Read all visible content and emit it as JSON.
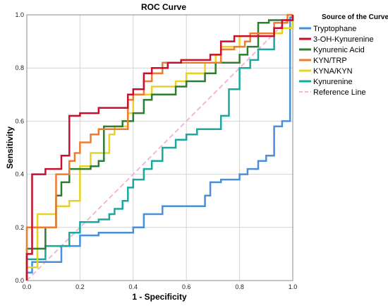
{
  "chart_data": {
    "type": "line",
    "title": "ROC Curve",
    "xlabel": "1 - Specificity",
    "ylabel": "Sensitivity",
    "xlim": [
      0,
      1
    ],
    "ylim": [
      0,
      1
    ],
    "xticks": [
      "0.0",
      "0.2",
      "0.4",
      "0.6",
      "0.8",
      "1.0"
    ],
    "yticks": [
      "0.0",
      "0.2",
      "0.4",
      "0.6",
      "0.8",
      "1.0"
    ],
    "grid": true,
    "legend": {
      "title": "Source of the Curve",
      "position": "right"
    },
    "series": [
      {
        "name": "Tryptophane",
        "color": "#4a90d9",
        "points": [
          [
            0,
            0
          ],
          [
            0,
            0.03
          ],
          [
            0.02,
            0.03
          ],
          [
            0.02,
            0.07
          ],
          [
            0.13,
            0.07
          ],
          [
            0.13,
            0.13
          ],
          [
            0.2,
            0.13
          ],
          [
            0.2,
            0.17
          ],
          [
            0.27,
            0.17
          ],
          [
            0.27,
            0.18
          ],
          [
            0.4,
            0.18
          ],
          [
            0.4,
            0.2
          ],
          [
            0.44,
            0.2
          ],
          [
            0.44,
            0.25
          ],
          [
            0.51,
            0.25
          ],
          [
            0.51,
            0.28
          ],
          [
            0.67,
            0.28
          ],
          [
            0.67,
            0.32
          ],
          [
            0.69,
            0.32
          ],
          [
            0.69,
            0.37
          ],
          [
            0.73,
            0.37
          ],
          [
            0.73,
            0.38
          ],
          [
            0.8,
            0.38
          ],
          [
            0.8,
            0.4
          ],
          [
            0.83,
            0.4
          ],
          [
            0.83,
            0.42
          ],
          [
            0.87,
            0.42
          ],
          [
            0.87,
            0.45
          ],
          [
            0.9,
            0.45
          ],
          [
            0.9,
            0.47
          ],
          [
            0.93,
            0.47
          ],
          [
            0.93,
            0.58
          ],
          [
            0.96,
            0.58
          ],
          [
            0.96,
            0.6
          ],
          [
            0.99,
            0.6
          ],
          [
            0.99,
            0.99
          ],
          [
            1,
            0.99
          ],
          [
            1,
            1
          ]
        ]
      },
      {
        "name": "3-OH-Kynurenine",
        "color": "#c8102e",
        "points": [
          [
            0,
            0
          ],
          [
            0,
            0.1
          ],
          [
            0.02,
            0.1
          ],
          [
            0.02,
            0.4
          ],
          [
            0.07,
            0.4
          ],
          [
            0.07,
            0.42
          ],
          [
            0.13,
            0.42
          ],
          [
            0.13,
            0.47
          ],
          [
            0.16,
            0.47
          ],
          [
            0.16,
            0.62
          ],
          [
            0.2,
            0.62
          ],
          [
            0.2,
            0.63
          ],
          [
            0.27,
            0.63
          ],
          [
            0.27,
            0.65
          ],
          [
            0.38,
            0.65
          ],
          [
            0.38,
            0.7
          ],
          [
            0.4,
            0.7
          ],
          [
            0.4,
            0.72
          ],
          [
            0.44,
            0.72
          ],
          [
            0.44,
            0.78
          ],
          [
            0.47,
            0.78
          ],
          [
            0.47,
            0.8
          ],
          [
            0.53,
            0.8
          ],
          [
            0.53,
            0.82
          ],
          [
            0.58,
            0.82
          ],
          [
            0.58,
            0.83
          ],
          [
            0.69,
            0.83
          ],
          [
            0.69,
            0.85
          ],
          [
            0.73,
            0.85
          ],
          [
            0.73,
            0.9
          ],
          [
            0.78,
            0.9
          ],
          [
            0.78,
            0.92
          ],
          [
            0.93,
            0.92
          ],
          [
            0.93,
            0.95
          ],
          [
            0.96,
            0.95
          ],
          [
            0.96,
            0.98
          ],
          [
            1,
            0.98
          ],
          [
            1,
            1
          ]
        ]
      },
      {
        "name": "Kynurenic Acid",
        "color": "#2e7d32",
        "points": [
          [
            0,
            0
          ],
          [
            0,
            0.12
          ],
          [
            0.07,
            0.12
          ],
          [
            0.07,
            0.2
          ],
          [
            0.11,
            0.2
          ],
          [
            0.11,
            0.32
          ],
          [
            0.13,
            0.32
          ],
          [
            0.13,
            0.37
          ],
          [
            0.16,
            0.37
          ],
          [
            0.16,
            0.42
          ],
          [
            0.24,
            0.42
          ],
          [
            0.24,
            0.43
          ],
          [
            0.27,
            0.43
          ],
          [
            0.27,
            0.45
          ],
          [
            0.29,
            0.45
          ],
          [
            0.29,
            0.58
          ],
          [
            0.36,
            0.58
          ],
          [
            0.36,
            0.6
          ],
          [
            0.4,
            0.6
          ],
          [
            0.4,
            0.63
          ],
          [
            0.44,
            0.63
          ],
          [
            0.44,
            0.68
          ],
          [
            0.47,
            0.68
          ],
          [
            0.47,
            0.7
          ],
          [
            0.56,
            0.7
          ],
          [
            0.56,
            0.73
          ],
          [
            0.6,
            0.73
          ],
          [
            0.6,
            0.75
          ],
          [
            0.67,
            0.75
          ],
          [
            0.67,
            0.78
          ],
          [
            0.71,
            0.78
          ],
          [
            0.71,
            0.82
          ],
          [
            0.8,
            0.82
          ],
          [
            0.8,
            0.85
          ],
          [
            0.83,
            0.85
          ],
          [
            0.83,
            0.88
          ],
          [
            0.87,
            0.88
          ],
          [
            0.87,
            0.97
          ],
          [
            0.91,
            0.97
          ],
          [
            0.91,
            0.98
          ],
          [
            1,
            0.98
          ],
          [
            1,
            1
          ]
        ]
      },
      {
        "name": "KYN/TRP",
        "color": "#f07b2e",
        "points": [
          [
            0,
            0
          ],
          [
            0,
            0.2
          ],
          [
            0.11,
            0.2
          ],
          [
            0.11,
            0.4
          ],
          [
            0.16,
            0.4
          ],
          [
            0.16,
            0.45
          ],
          [
            0.18,
            0.45
          ],
          [
            0.18,
            0.48
          ],
          [
            0.2,
            0.48
          ],
          [
            0.2,
            0.52
          ],
          [
            0.24,
            0.52
          ],
          [
            0.24,
            0.55
          ],
          [
            0.27,
            0.55
          ],
          [
            0.27,
            0.57
          ],
          [
            0.38,
            0.57
          ],
          [
            0.38,
            0.68
          ],
          [
            0.4,
            0.68
          ],
          [
            0.4,
            0.7
          ],
          [
            0.44,
            0.7
          ],
          [
            0.44,
            0.75
          ],
          [
            0.47,
            0.75
          ],
          [
            0.47,
            0.78
          ],
          [
            0.51,
            0.78
          ],
          [
            0.51,
            0.82
          ],
          [
            0.73,
            0.82
          ],
          [
            0.73,
            0.87
          ],
          [
            0.78,
            0.87
          ],
          [
            0.78,
            0.88
          ],
          [
            0.82,
            0.88
          ],
          [
            0.82,
            0.9
          ],
          [
            0.84,
            0.9
          ],
          [
            0.84,
            0.93
          ],
          [
            0.93,
            0.93
          ],
          [
            0.93,
            0.97
          ],
          [
            0.98,
            0.97
          ],
          [
            0.98,
            1
          ],
          [
            1,
            1
          ]
        ]
      },
      {
        "name": "KYNA/KYN",
        "color": "#e6d322",
        "points": [
          [
            0,
            0
          ],
          [
            0,
            0.05
          ],
          [
            0.04,
            0.05
          ],
          [
            0.04,
            0.25
          ],
          [
            0.11,
            0.25
          ],
          [
            0.11,
            0.28
          ],
          [
            0.16,
            0.28
          ],
          [
            0.16,
            0.3
          ],
          [
            0.2,
            0.3
          ],
          [
            0.2,
            0.43
          ],
          [
            0.24,
            0.43
          ],
          [
            0.24,
            0.48
          ],
          [
            0.31,
            0.48
          ],
          [
            0.31,
            0.55
          ],
          [
            0.33,
            0.55
          ],
          [
            0.33,
            0.58
          ],
          [
            0.38,
            0.58
          ],
          [
            0.38,
            0.63
          ],
          [
            0.4,
            0.63
          ],
          [
            0.4,
            0.7
          ],
          [
            0.47,
            0.7
          ],
          [
            0.47,
            0.73
          ],
          [
            0.56,
            0.73
          ],
          [
            0.56,
            0.75
          ],
          [
            0.6,
            0.75
          ],
          [
            0.6,
            0.78
          ],
          [
            0.67,
            0.78
          ],
          [
            0.67,
            0.82
          ],
          [
            0.71,
            0.82
          ],
          [
            0.71,
            0.85
          ],
          [
            0.73,
            0.85
          ],
          [
            0.73,
            0.88
          ],
          [
            0.8,
            0.88
          ],
          [
            0.8,
            0.92
          ],
          [
            0.87,
            0.92
          ],
          [
            0.87,
            0.93
          ],
          [
            0.96,
            0.93
          ],
          [
            0.96,
            0.95
          ],
          [
            1,
            0.95
          ],
          [
            1,
            1
          ]
        ]
      },
      {
        "name": "Kynurenine",
        "color": "#1aa89e",
        "points": [
          [
            0,
            0
          ],
          [
            0,
            0.08
          ],
          [
            0.07,
            0.08
          ],
          [
            0.07,
            0.13
          ],
          [
            0.16,
            0.13
          ],
          [
            0.16,
            0.18
          ],
          [
            0.2,
            0.18
          ],
          [
            0.2,
            0.22
          ],
          [
            0.27,
            0.22
          ],
          [
            0.27,
            0.23
          ],
          [
            0.31,
            0.23
          ],
          [
            0.31,
            0.25
          ],
          [
            0.33,
            0.25
          ],
          [
            0.33,
            0.27
          ],
          [
            0.36,
            0.27
          ],
          [
            0.36,
            0.3
          ],
          [
            0.38,
            0.3
          ],
          [
            0.38,
            0.35
          ],
          [
            0.4,
            0.35
          ],
          [
            0.4,
            0.38
          ],
          [
            0.44,
            0.38
          ],
          [
            0.44,
            0.42
          ],
          [
            0.47,
            0.42
          ],
          [
            0.47,
            0.45
          ],
          [
            0.51,
            0.45
          ],
          [
            0.51,
            0.5
          ],
          [
            0.56,
            0.5
          ],
          [
            0.56,
            0.53
          ],
          [
            0.6,
            0.53
          ],
          [
            0.6,
            0.55
          ],
          [
            0.64,
            0.55
          ],
          [
            0.64,
            0.57
          ],
          [
            0.73,
            0.57
          ],
          [
            0.73,
            0.62
          ],
          [
            0.76,
            0.62
          ],
          [
            0.76,
            0.72
          ],
          [
            0.8,
            0.72
          ],
          [
            0.8,
            0.8
          ],
          [
            0.84,
            0.8
          ],
          [
            0.84,
            0.83
          ],
          [
            0.87,
            0.83
          ],
          [
            0.87,
            0.87
          ],
          [
            0.93,
            0.87
          ],
          [
            0.93,
            0.95
          ],
          [
            1,
            0.95
          ],
          [
            1,
            1
          ]
        ]
      },
      {
        "name": "Reference Line",
        "color": "#f4b6d2",
        "dashed": true,
        "points": [
          [
            0,
            0
          ],
          [
            1,
            1
          ]
        ]
      }
    ]
  }
}
